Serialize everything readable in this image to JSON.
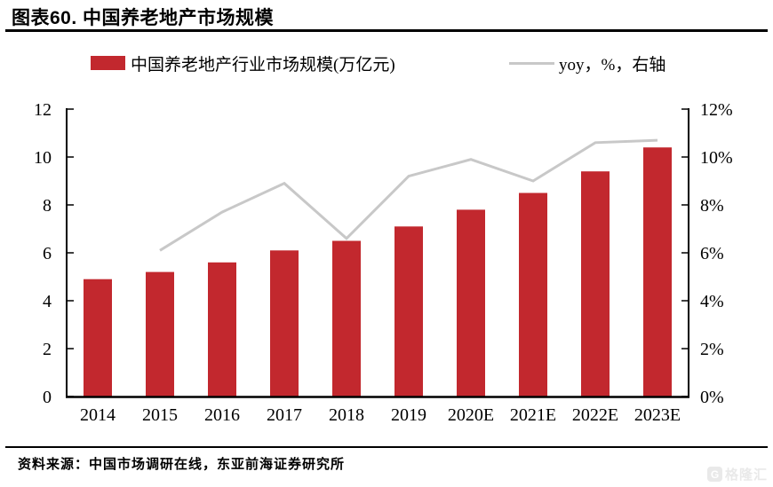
{
  "figure": {
    "title": "图表60. 中国养老地产市场规模",
    "source": "资料来源：中国市场调研在线，东亚前海证券研究所",
    "watermark_letter": "G",
    "watermark": "格隆汇"
  },
  "legend": [
    {
      "label": "中国养老地产行业市场规模(万亿元)",
      "color": "#c2282e",
      "type": "bar"
    },
    {
      "label": "yoy，%，右轴",
      "color": "#c8c8c8",
      "type": "line"
    }
  ],
  "chart_data": {
    "type": "bar+line",
    "title": "图表60. 中国养老地产市场规模",
    "categories": [
      "2014",
      "2015",
      "2016",
      "2017",
      "2018",
      "2019",
      "2020E",
      "2021E",
      "2022E",
      "2023E"
    ],
    "series": [
      {
        "name": "中国养老地产行业市场规模(万亿元)",
        "type": "bar",
        "axis": "left",
        "unit": "万亿元",
        "color": "#c2282e",
        "values": [
          4.9,
          5.2,
          5.6,
          6.1,
          6.5,
          7.1,
          7.8,
          8.5,
          9.4,
          10.4
        ]
      },
      {
        "name": "yoy，%，右轴",
        "type": "line",
        "axis": "right",
        "unit": "%",
        "color": "#c8c8c8",
        "values": [
          null,
          6.1,
          7.7,
          8.9,
          6.6,
          9.2,
          9.9,
          9.0,
          10.6,
          10.7
        ]
      }
    ],
    "left_axis": {
      "min": 0,
      "max": 12,
      "step": 2,
      "ticks": [
        "0",
        "2",
        "4",
        "6",
        "8",
        "10",
        "12"
      ]
    },
    "right_axis": {
      "min": 0,
      "max": 12,
      "step": 2,
      "ticks": [
        "0%",
        "2%",
        "4%",
        "6%",
        "8%",
        "10%",
        "12%"
      ]
    },
    "grid": false,
    "legend_position": "top"
  }
}
